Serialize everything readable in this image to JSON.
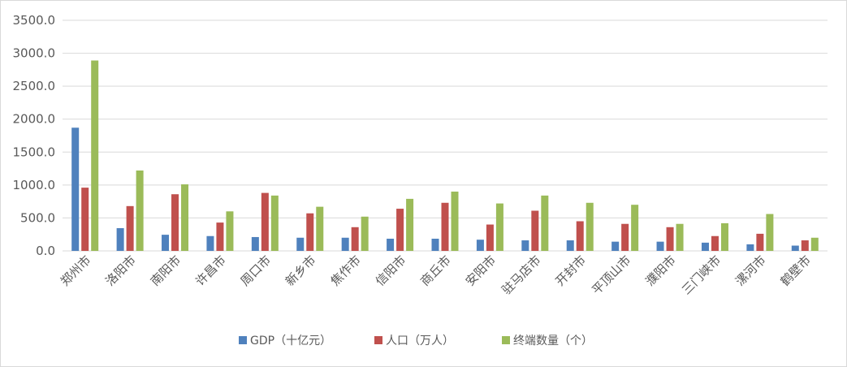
{
  "chart_data": {
    "type": "bar",
    "categories": [
      "郑州市",
      "洛阳市",
      "南阳市",
      "许昌市",
      "周口市",
      "新乡市",
      "焦作市",
      "信阳市",
      "商丘市",
      "安阳市",
      "驻马店市",
      "开封市",
      "平顶山市",
      "濮阳市",
      "三门峡市",
      "漯河市",
      "鹤壁市"
    ],
    "series": [
      {
        "name": "GDP（十亿元）",
        "color": "#4f81bd",
        "values": [
          1870,
          345,
          245,
          225,
          210,
          200,
          200,
          185,
          185,
          170,
          160,
          160,
          140,
          140,
          125,
          100,
          80
        ]
      },
      {
        "name": "人口（万人）",
        "color": "#c0504d",
        "values": [
          960,
          680,
          860,
          430,
          880,
          570,
          360,
          640,
          730,
          400,
          610,
          450,
          410,
          360,
          225,
          260,
          160
        ]
      },
      {
        "name": "终端数量（个）",
        "color": "#9bbb59",
        "values": [
          2890,
          1220,
          1010,
          600,
          840,
          670,
          520,
          790,
          900,
          720,
          840,
          730,
          700,
          410,
          420,
          560,
          200
        ]
      }
    ],
    "ylim": [
      0,
      3500
    ],
    "ytick_step": 500,
    "ytick_labels": [
      "0.0",
      "500.0",
      "1000.0",
      "1500.0",
      "2000.0",
      "2500.0",
      "3000.0",
      "3500.0"
    ],
    "grid": true,
    "legend_position": "bottom"
  }
}
